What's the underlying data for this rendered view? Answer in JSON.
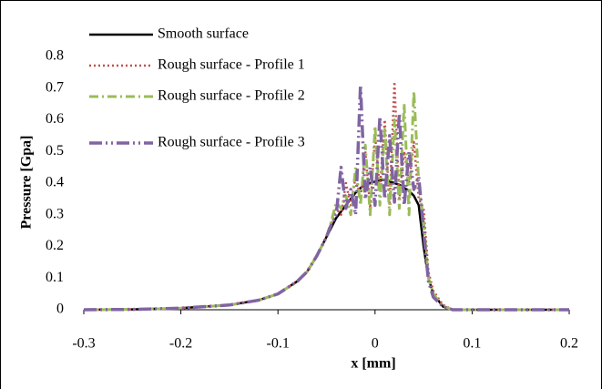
{
  "chart_data": {
    "type": "line",
    "x_label": "x [mm]",
    "y_label": "Pressure [Gpa]",
    "xlim": [
      -0.3,
      0.2
    ],
    "xticks": [
      -0.3,
      -0.2,
      -0.1,
      0,
      0.1,
      0.2
    ],
    "ylim": [
      0,
      0.8
    ],
    "yticks": [
      0,
      0.1,
      0.2,
      0.3,
      0.4,
      0.5,
      0.6,
      0.7,
      0.8
    ],
    "grid": false,
    "legend": "upper-left",
    "x": [
      -0.3,
      -0.25,
      -0.2,
      -0.15,
      -0.12,
      -0.1,
      -0.09,
      -0.08,
      -0.07,
      -0.06,
      -0.05,
      -0.045,
      -0.04,
      -0.035,
      -0.03,
      -0.025,
      -0.02,
      -0.015,
      -0.01,
      -0.005,
      0,
      0.005,
      0.01,
      0.015,
      0.02,
      0.025,
      0.03,
      0.035,
      0.04,
      0.045,
      0.05,
      0.055,
      0.06,
      0.07,
      0.08,
      0.1,
      0.15,
      0.2
    ],
    "series": [
      {
        "name": "Smooth surface",
        "color": "#000000",
        "dash": "solid",
        "values": [
          0,
          0.001,
          0.005,
          0.015,
          0.03,
          0.05,
          0.07,
          0.09,
          0.12,
          0.17,
          0.23,
          0.26,
          0.29,
          0.31,
          0.33,
          0.35,
          0.37,
          0.385,
          0.395,
          0.4,
          0.405,
          0.41,
          0.41,
          0.405,
          0.4,
          0.395,
          0.385,
          0.375,
          0.36,
          0.33,
          0.2,
          0.1,
          0.05,
          0.01,
          0,
          0,
          0,
          0
        ]
      },
      {
        "name": "Rough surface - Profile 1",
        "color": "#c0504d",
        "dash": "dot",
        "values": [
          0,
          0.001,
          0.005,
          0.015,
          0.03,
          0.05,
          0.07,
          0.09,
          0.12,
          0.17,
          0.23,
          0.27,
          0.32,
          0.3,
          0.4,
          0.33,
          0.42,
          0.35,
          0.5,
          0.32,
          0.55,
          0.38,
          0.6,
          0.33,
          0.72,
          0.35,
          0.5,
          0.4,
          0.53,
          0.35,
          0.32,
          0.12,
          0.06,
          0.015,
          0,
          0,
          0,
          0
        ]
      },
      {
        "name": "Rough surface - Profile 2",
        "color": "#9bbb59",
        "dash": "dashdot",
        "values": [
          0,
          0.001,
          0.005,
          0.015,
          0.03,
          0.05,
          0.07,
          0.09,
          0.12,
          0.17,
          0.23,
          0.28,
          0.34,
          0.32,
          0.36,
          0.3,
          0.45,
          0.33,
          0.52,
          0.3,
          0.58,
          0.33,
          0.57,
          0.3,
          0.6,
          0.32,
          0.65,
          0.3,
          0.69,
          0.4,
          0.28,
          0.1,
          0.05,
          0.01,
          0,
          0,
          0,
          0
        ]
      },
      {
        "name": "Rough surface - Profile 3",
        "color": "#8064a2",
        "dash": "longdashdot",
        "values": [
          0,
          0.001,
          0.005,
          0.015,
          0.03,
          0.05,
          0.07,
          0.09,
          0.12,
          0.17,
          0.23,
          0.27,
          0.3,
          0.45,
          0.32,
          0.38,
          0.3,
          0.71,
          0.35,
          0.45,
          0.33,
          0.61,
          0.35,
          0.55,
          0.34,
          0.62,
          0.33,
          0.5,
          0.38,
          0.42,
          0.25,
          0.09,
          0.04,
          0.01,
          0,
          0,
          0,
          0
        ]
      }
    ]
  }
}
